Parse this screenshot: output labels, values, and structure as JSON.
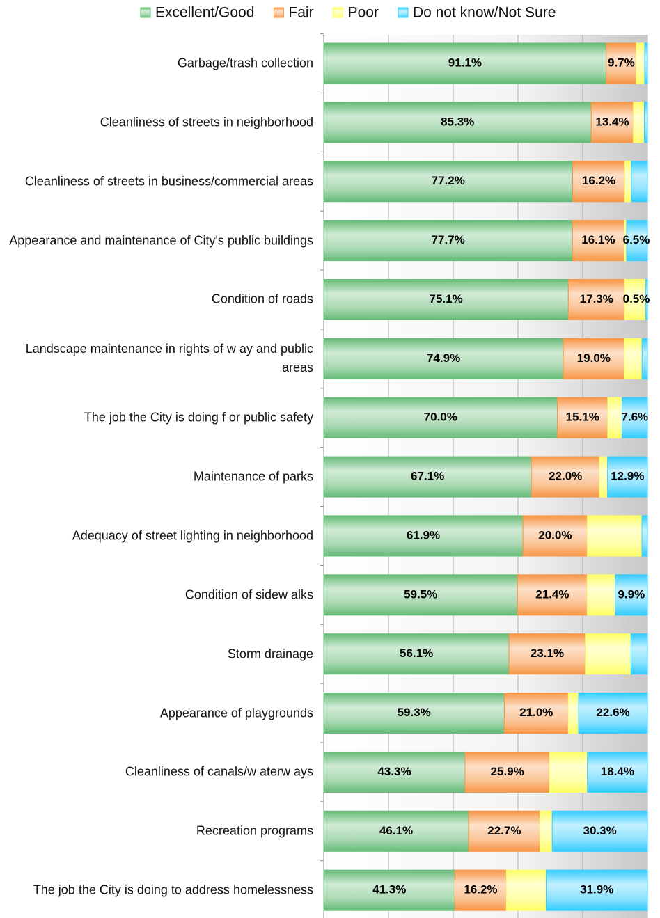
{
  "chart_data": {
    "type": "bar",
    "orientation": "horizontal",
    "stacking": "percent",
    "categories": [
      "Garbage/trash collection",
      "Cleanliness of streets in neighborhood",
      "Cleanliness of streets in business/commercial areas",
      "Appearance and maintenance of City's public buildings",
      "Condition of roads",
      "Landscape maintenance in rights of w ay and public areas",
      "The job the City is doing f or public safety",
      "Maintenance of parks",
      "Adequacy of street lighting in neighborhood",
      "Condition of sidew alks",
      "Storm drainage",
      "Appearance of playgrounds",
      "Cleanliness of canals/w aterw ays",
      "Recreation programs",
      "The job the City is doing to address homelessness"
    ],
    "series": [
      {
        "name": "Excellent/Good",
        "color": "#66bb77",
        "values": [
          91.1,
          85.3,
          77.2,
          77.7,
          75.1,
          74.9,
          70.0,
          67.1,
          61.9,
          59.5,
          56.1,
          59.3,
          43.3,
          46.1,
          41.3
        ],
        "value_labels": [
          "91.1%",
          "85.3%",
          "77.2%",
          "77.7%",
          "75.1%",
          "74.9%",
          "70.0%",
          "67.1%",
          "61.9%",
          "59.5%",
          "56.1%",
          "59.3%",
          "43.3%",
          "46.1%",
          "41.3%"
        ]
      },
      {
        "name": "Fair",
        "color": "#f79646",
        "values": [
          9.7,
          13.4,
          16.2,
          16.1,
          17.3,
          19.0,
          15.1,
          22.0,
          20.0,
          21.4,
          23.1,
          21.0,
          25.9,
          22.7,
          16.2
        ],
        "value_labels": [
          "9.7%",
          "13.4%",
          "16.2%",
          "16.1%",
          "17.3%",
          "19.0%",
          "15.1%",
          "22.0%",
          "20.0%",
          "21.4%",
          "23.1%",
          "21.0%",
          "25.9%",
          "22.7%",
          "16.2%"
        ]
      },
      {
        "name": "Poor",
        "color": "#ffff66",
        "values": [
          2.7,
          3.5,
          2.0,
          0.8,
          6.5,
          5.6,
          4.3,
          2.6,
          17.0,
          8.6,
          13.8,
          3.4,
          11.6,
          3.9,
          12.5
        ],
        "value_labels": [
          null,
          null,
          null,
          null,
          null,
          null,
          null,
          null,
          null,
          null,
          null,
          null,
          null,
          null,
          null
        ]
      },
      {
        "name": "Do not know/Not Sure",
        "color": "#33ccff",
        "values": [
          0.9,
          1.0,
          5.0,
          6.5,
          0.5,
          1.7,
          7.6,
          12.9,
          1.7,
          9.9,
          5.0,
          22.6,
          18.4,
          30.3,
          31.9
        ],
        "value_labels": [
          null,
          null,
          null,
          "6.5%",
          "0.5%",
          null,
          "7.6%",
          "12.9%",
          null,
          "9.9%",
          null,
          "22.6%",
          "18.4%",
          "30.3%",
          "31.9%"
        ]
      }
    ],
    "xlim": [
      0,
      100
    ],
    "xticks": [
      0,
      20,
      40,
      60,
      80,
      100
    ],
    "grid": true,
    "legend": "top"
  }
}
